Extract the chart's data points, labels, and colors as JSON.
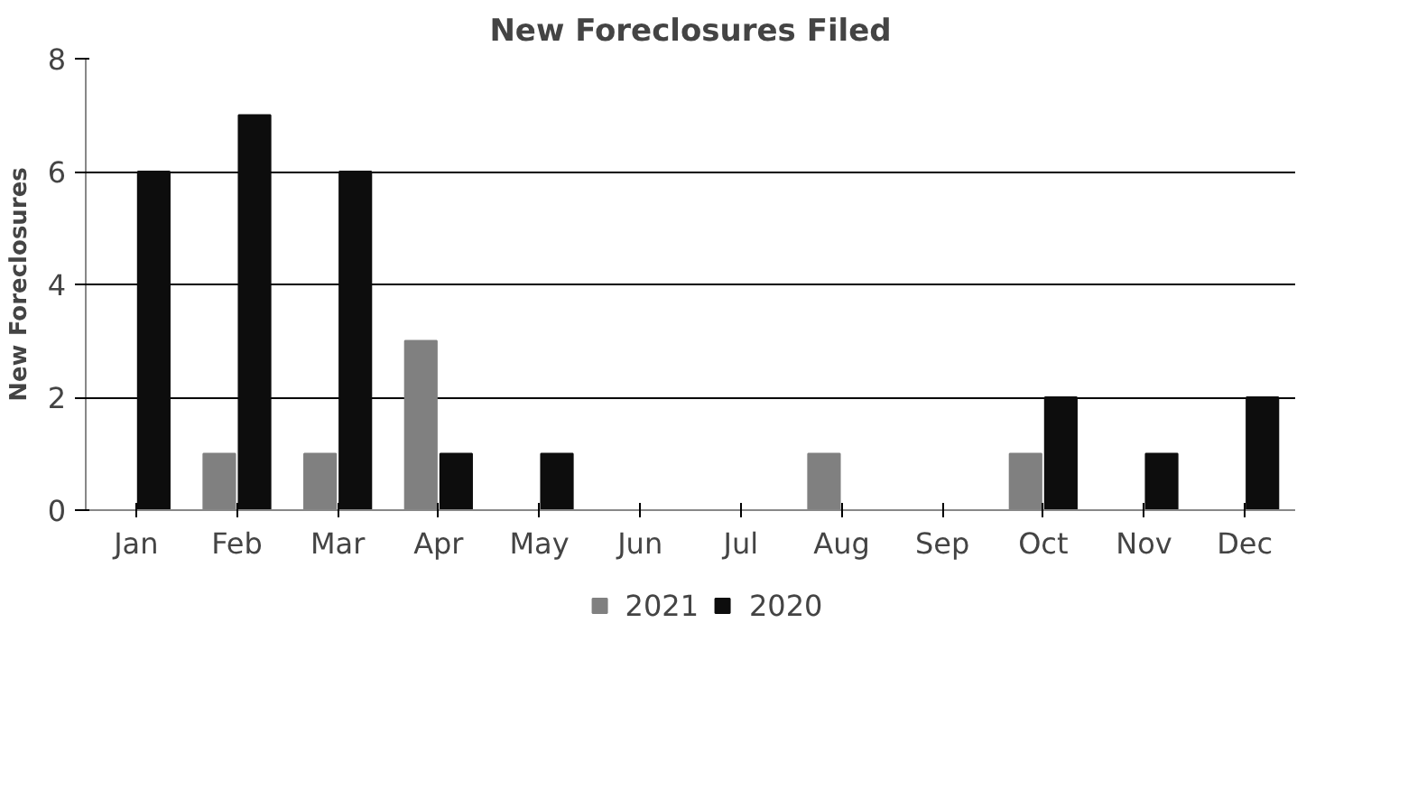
{
  "chart_data": {
    "type": "bar",
    "title": "New Foreclosures Filed",
    "ylabel": "New Foreclosures",
    "categories": [
      "Jan",
      "Feb",
      "Mar",
      "Apr",
      "May",
      "Jun",
      "Jul",
      "Aug",
      "Sep",
      "Oct",
      "Nov",
      "Dec"
    ],
    "series": [
      {
        "name": "2021",
        "color": "#808080",
        "values": [
          0,
          1,
          1,
          3,
          0,
          0,
          0,
          1,
          0,
          1,
          0,
          0
        ]
      },
      {
        "name": "2020",
        "color": "#0d0d0d",
        "values": [
          6,
          7,
          6,
          1,
          1,
          0,
          0,
          0,
          0,
          2,
          1,
          2
        ]
      }
    ],
    "ylim": [
      0,
      8
    ],
    "yticks": [
      0,
      2,
      4,
      6,
      8
    ],
    "grid": "y",
    "legend": "bottom"
  }
}
